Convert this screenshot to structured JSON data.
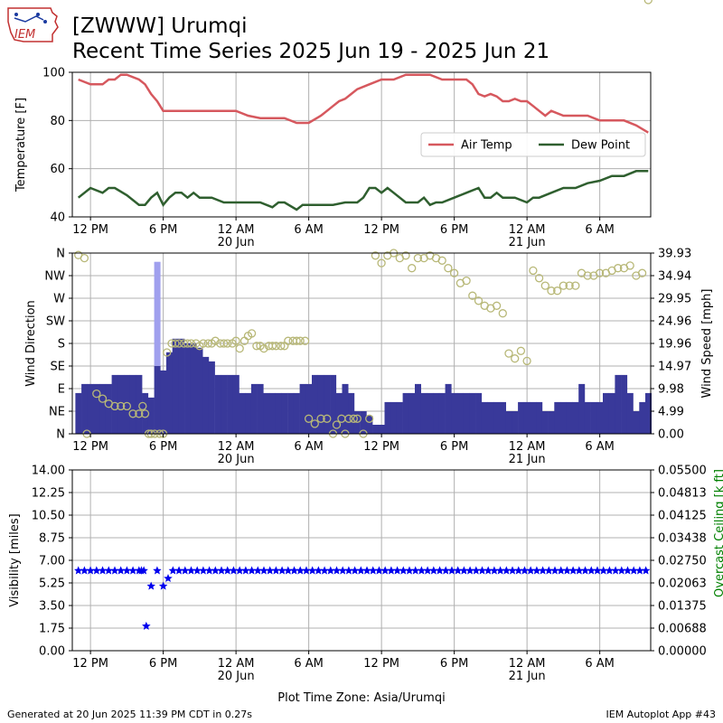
{
  "header": {
    "title_line1": "[ZWWW] Urumqi",
    "title_line2": "Recent Time Series 2025 Jun 19 - 2025 Jun 21",
    "logo_text": "IEM"
  },
  "footer": {
    "generated": "Generated at 20 Jun 2025 11:39 PM CDT in 0.27s",
    "app": "IEM Autoplot App #43"
  },
  "colors": {
    "air_temp": "#d6585e",
    "dew_point": "#2f5f2f",
    "wind_direction": "#b8b878",
    "wind_speed": "#39399a",
    "wind_gust": "#a0a0ee",
    "visibility": "#0000ee",
    "ceiling_label": "#008000"
  },
  "chart_data": [
    {
      "type": "line",
      "ylabel": "Temperature [F]",
      "ylim": [
        40,
        100
      ],
      "yticks": [
        "40",
        "60",
        "80",
        "100"
      ],
      "x_tick_labels": [
        "12 PM",
        "6 PM",
        "12 AM\n20 Jun",
        "6 AM",
        "12 PM",
        "6 PM",
        "12 AM\n21 Jun",
        "6 AM"
      ],
      "x_hours": [
        0,
        6,
        12,
        18,
        24,
        30,
        36,
        42
      ],
      "grid": true,
      "legend_position": "center-right",
      "series": [
        {
          "name": "Air Temp",
          "x": [
            -1,
            0,
            1,
            1.5,
            2,
            2.5,
            3,
            4,
            4.5,
            5,
            5.5,
            6,
            7,
            8,
            9,
            10,
            11,
            12,
            13,
            14,
            15,
            16,
            17,
            18,
            19,
            19.5,
            20,
            20.5,
            21,
            21.5,
            22,
            23,
            24,
            25,
            26,
            27,
            28,
            29,
            30,
            31,
            31.5,
            32,
            32.5,
            33,
            33.5,
            34,
            34.5,
            35,
            35.5,
            36,
            36.5,
            37,
            37.5,
            38,
            39,
            40,
            41,
            42,
            43,
            44,
            45,
            46
          ],
          "y": [
            97,
            95,
            95,
            97,
            97,
            99,
            99,
            97,
            95,
            91,
            88,
            84,
            84,
            84,
            84,
            84,
            84,
            84,
            82,
            81,
            81,
            81,
            79,
            79,
            82,
            84,
            86,
            88,
            89,
            91,
            93,
            95,
            97,
            97,
            99,
            99,
            99,
            97,
            97,
            97,
            95,
            91,
            90,
            91,
            90,
            88,
            88,
            89,
            88,
            88,
            86,
            84,
            82,
            84,
            82,
            82,
            82,
            80,
            80,
            80,
            78,
            75
          ]
        },
        {
          "name": "Dew Point",
          "x": [
            -1,
            0,
            1,
            1.5,
            2,
            3,
            4,
            4.5,
            5,
            5.5,
            6,
            6.5,
            7,
            7.5,
            8,
            8.5,
            9,
            10,
            11,
            12,
            13,
            14,
            15,
            15.5,
            16,
            17,
            17.5,
            18,
            19,
            20,
            21,
            22,
            22.5,
            23,
            23.5,
            24,
            24.5,
            25,
            26,
            27,
            27.5,
            28,
            28.5,
            29,
            30,
            31,
            32,
            32.5,
            33,
            33.5,
            34,
            35,
            36,
            36.5,
            37,
            38,
            39,
            40,
            41,
            42,
            43,
            44,
            45,
            46
          ],
          "y": [
            48,
            52,
            50,
            52,
            52,
            49,
            45,
            45,
            48,
            50,
            45,
            48,
            50,
            50,
            48,
            50,
            48,
            48,
            46,
            46,
            46,
            46,
            44,
            46,
            46,
            43,
            45,
            45,
            45,
            45,
            46,
            46,
            48,
            52,
            52,
            50,
            52,
            50,
            46,
            46,
            48,
            45,
            46,
            46,
            48,
            50,
            52,
            48,
            48,
            50,
            48,
            48,
            46,
            48,
            48,
            50,
            52,
            52,
            54,
            55,
            57,
            57,
            59,
            59
          ]
        }
      ]
    },
    {
      "type": "bar",
      "ylabel": "Wind Direction",
      "y2label": "Wind Speed [mph]",
      "direction_ticks": [
        "N",
        "NE",
        "E",
        "SE",
        "S",
        "SW",
        "W",
        "NW",
        "N"
      ],
      "speed_ticks": [
        "0.00",
        "4.99",
        "9.98",
        "14.97",
        "19.96",
        "24.96",
        "29.95",
        "34.94",
        "39.93"
      ],
      "speed_ylim": [
        0,
        39.93
      ],
      "x_tick_labels": [
        "12 PM",
        "6 PM",
        "12 AM\n20 Jun",
        "6 AM",
        "12 PM",
        "6 PM",
        "12 AM\n21 Jun",
        "6 AM"
      ],
      "x_hours": [
        0,
        6,
        12,
        18,
        24,
        30,
        36,
        42
      ],
      "grid": true,
      "wind_speed_x": [
        -1,
        -0.5,
        0,
        0.5,
        1,
        1.5,
        2,
        2.5,
        3,
        3.5,
        4,
        4.5,
        5,
        5.5,
        6,
        6.5,
        7,
        7.5,
        8,
        8.5,
        9,
        9.5,
        10,
        10.5,
        11,
        11.5,
        12,
        12.5,
        13,
        13.5,
        14,
        14.5,
        15,
        15.5,
        16,
        16.5,
        17,
        17.5,
        18,
        18.5,
        19,
        19.5,
        20,
        20.5,
        21,
        21.5,
        22,
        22.5,
        23,
        23.5,
        24,
        24.5,
        25,
        25.5,
        26,
        26.5,
        27,
        27.5,
        28,
        28.5,
        29,
        29.5,
        30,
        30.5,
        31,
        31.5,
        32,
        32.5,
        33,
        33.5,
        34,
        34.5,
        35,
        35.5,
        36,
        36.5,
        37,
        37.5,
        38,
        38.5,
        39,
        39.5,
        40,
        40.5,
        41,
        41.5,
        42,
        42.5,
        43,
        43.5,
        44,
        44.5,
        45,
        45.5,
        46
      ],
      "wind_speed_values": [
        9,
        11,
        11,
        11,
        11,
        11,
        13,
        13,
        13,
        13,
        13,
        9,
        8,
        15,
        14,
        18,
        21,
        21,
        20,
        20,
        19,
        17,
        16,
        13,
        13,
        13,
        13,
        9,
        9,
        11,
        11,
        9,
        9,
        9,
        9,
        9,
        9,
        11,
        11,
        13,
        13,
        13,
        13,
        9,
        11,
        9,
        5,
        5,
        4,
        2,
        2,
        7,
        7,
        7,
        9,
        9,
        11,
        9,
        9,
        9,
        9,
        11,
        9,
        9,
        9,
        9,
        9,
        7,
        7,
        7,
        7,
        5,
        5,
        7,
        7,
        7,
        7,
        5,
        5,
        7,
        7,
        7,
        7,
        11,
        7,
        7,
        7,
        9,
        9,
        13,
        13,
        9,
        5,
        7,
        9,
        13,
        13
      ],
      "wind_gust_x": [
        5.5
      ],
      "wind_gust_values": [
        38
      ],
      "wind_direction_x": [
        -1,
        -0.5,
        -0.3,
        0.5,
        1,
        1.5,
        2,
        2.5,
        3,
        3.5,
        4,
        4.3,
        4.5,
        4.8,
        5,
        5.3,
        5.7,
        6,
        6.3,
        6.7,
        7,
        7.3,
        7.7,
        8,
        8.3,
        8.7,
        9,
        9.3,
        9.7,
        10,
        10.3,
        10.7,
        11,
        11.3,
        11.7,
        12,
        12.3,
        12.7,
        13,
        13.3,
        13.7,
        14,
        14.3,
        14.7,
        15,
        15.3,
        15.7,
        16,
        16.3,
        16.7,
        17,
        17.3,
        17.7,
        18,
        18.5,
        19,
        19.5,
        20,
        20.3,
        20.7,
        21,
        21.3,
        21.7,
        22,
        22.5,
        23,
        23.5,
        24,
        24.5,
        25,
        25.5,
        26,
        26.5,
        27,
        27.5,
        28,
        28.5,
        29,
        29.5,
        30,
        30.5,
        31,
        31.5,
        32,
        32.5,
        33,
        33.5,
        34,
        34.5,
        35,
        35.5,
        36,
        36.5,
        37,
        37.5,
        38,
        38.5,
        39,
        39.5,
        40,
        40.5,
        41,
        41.5,
        42,
        42.5,
        43,
        43.5,
        44,
        44.5,
        45,
        45.5,
        46
      ],
      "wind_direction_deg": [
        356,
        350,
        0,
        80,
        70,
        60,
        55,
        55,
        55,
        40,
        40,
        55,
        40,
        0,
        0,
        0,
        0,
        0,
        162,
        180,
        180,
        180,
        180,
        180,
        180,
        180,
        175,
        180,
        180,
        180,
        185,
        180,
        180,
        180,
        180,
        185,
        170,
        185,
        195,
        200,
        175,
        175,
        170,
        175,
        175,
        175,
        175,
        175,
        185,
        185,
        185,
        185,
        185,
        30,
        20,
        30,
        30,
        0,
        18,
        30,
        0,
        30,
        30,
        30,
        0,
        30,
        355,
        340,
        355,
        360,
        350,
        355,
        330,
        350,
        350,
        355,
        350,
        345,
        330,
        320,
        300,
        305,
        275,
        265,
        255,
        250,
        255,
        240,
        160,
        150,
        165,
        145,
        325,
        310,
        295,
        285,
        285,
        295,
        295,
        295,
        320,
        315,
        315,
        320,
        320,
        325,
        330,
        330,
        335,
        315,
        320
      ]
    },
    {
      "type": "scatter",
      "ylabel": "Visibility [miles]",
      "y2label": "Overcast Ceiling [k ft]",
      "ylim": [
        0,
        14
      ],
      "yticks": [
        "0.00",
        "1.75",
        "3.50",
        "5.25",
        "7.00",
        "8.75",
        "10.50",
        "12.25",
        "14.00"
      ],
      "y2ticks": [
        "0.00000",
        "0.00688",
        "0.01375",
        "0.02063",
        "0.02750",
        "0.03438",
        "0.04125",
        "0.04813",
        "0.05500"
      ],
      "xlabel": "Plot Time Zone: Asia/Urumqi",
      "x_tick_labels": [
        "12 PM",
        "6 PM",
        "12 AM\n20 Jun",
        "6 AM",
        "12 PM",
        "6 PM",
        "12 AM\n21 Jun",
        "6 AM"
      ],
      "x_hours": [
        0,
        6,
        12,
        18,
        24,
        30,
        36,
        42
      ],
      "grid": true,
      "visibility_x": [
        -1,
        -0.5,
        0,
        0.5,
        1,
        1.5,
        2,
        2.5,
        3,
        3.5,
        4,
        4.2,
        4.4,
        4.6,
        5,
        5.5,
        6,
        6.4,
        6.8,
        7.3,
        7.8,
        8.3,
        8.8,
        9.3,
        9.8,
        10.3,
        10.8,
        11.3,
        11.8,
        12.3,
        12.8,
        13.3,
        13.8,
        14.3,
        14.8,
        15.3,
        15.8,
        16.3,
        16.8,
        17.3,
        17.8,
        18.3,
        18.8,
        19.3,
        19.8,
        20.3,
        20.8,
        21.3,
        21.8,
        22.3,
        22.8,
        23.3,
        23.8,
        24.3,
        24.8,
        25.3,
        25.8,
        26.3,
        26.8,
        27.3,
        27.8,
        28.3,
        28.8,
        29.3,
        29.8,
        30.3,
        30.8,
        31.3,
        31.8,
        32.3,
        32.8,
        33.3,
        33.8,
        34.3,
        34.8,
        35.3,
        35.8,
        36.3,
        36.8,
        37.3,
        37.8,
        38.3,
        38.8,
        39.3,
        39.8,
        40.3,
        40.8,
        41.3,
        41.8,
        42.3,
        42.8,
        43.3,
        43.8,
        44.3,
        44.8,
        45.3,
        45.8
      ],
      "visibility_miles": [
        6.2,
        6.2,
        6.2,
        6.2,
        6.2,
        6.2,
        6.2,
        6.2,
        6.2,
        6.2,
        6.2,
        6.2,
        6.2,
        1.9,
        5.0,
        6.2,
        5.0,
        5.6,
        6.2,
        6.2,
        6.2,
        6.2,
        6.2,
        6.2,
        6.2,
        6.2,
        6.2,
        6.2,
        6.2,
        6.2,
        6.2,
        6.2,
        6.2,
        6.2,
        6.2,
        6.2,
        6.2,
        6.2,
        6.2,
        6.2,
        6.2,
        6.2,
        6.2,
        6.2,
        6.2,
        6.2,
        6.2,
        6.2,
        6.2,
        6.2,
        6.2,
        6.2,
        6.2,
        6.2,
        6.2,
        6.2,
        6.2,
        6.2,
        6.2,
        6.2,
        6.2,
        6.2,
        6.2,
        6.2,
        6.2,
        6.2,
        6.2,
        6.2,
        6.2,
        6.2,
        6.2,
        6.2,
        6.2,
        6.2,
        6.2,
        6.2,
        6.2,
        6.2,
        6.2,
        6.2,
        6.2,
        6.2,
        6.2,
        6.2,
        6.2,
        6.2,
        6.2,
        6.2,
        6.2,
        6.2,
        6.2,
        6.2,
        6.2,
        6.2,
        6.2,
        6.2,
        6.2
      ]
    }
  ]
}
